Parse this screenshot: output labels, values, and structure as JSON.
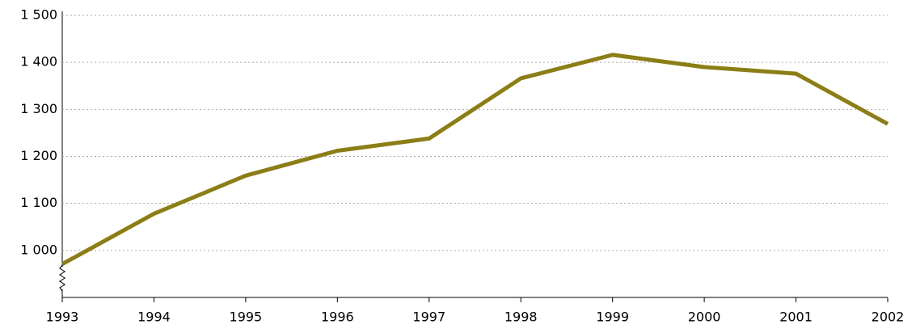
{
  "chart_data": {
    "type": "line",
    "x": [
      1993,
      1994,
      1995,
      1996,
      1997,
      1998,
      1999,
      2000,
      2001,
      2002
    ],
    "series": [
      {
        "color": "#8c7e16",
        "values": [
          971,
          1078,
          1159,
          1212,
          1238,
          1366,
          1416,
          1390,
          1376,
          1269
        ]
      }
    ],
    "xlim": [
      1993,
      2002
    ],
    "xticks": [
      1993,
      1994,
      1995,
      1996,
      1997,
      1998,
      1999,
      2000,
      2001,
      2002
    ],
    "ylim": [
      900,
      1500
    ],
    "yticks": [
      {
        "value": 1000,
        "label": "1 000"
      },
      {
        "value": 1100,
        "label": "1 100"
      },
      {
        "value": 1200,
        "label": "1 200"
      },
      {
        "value": 1300,
        "label": "1 300"
      },
      {
        "value": 1400,
        "label": "1 400"
      },
      {
        "value": 1500,
        "label": "1 500"
      }
    ],
    "grid": true
  }
}
